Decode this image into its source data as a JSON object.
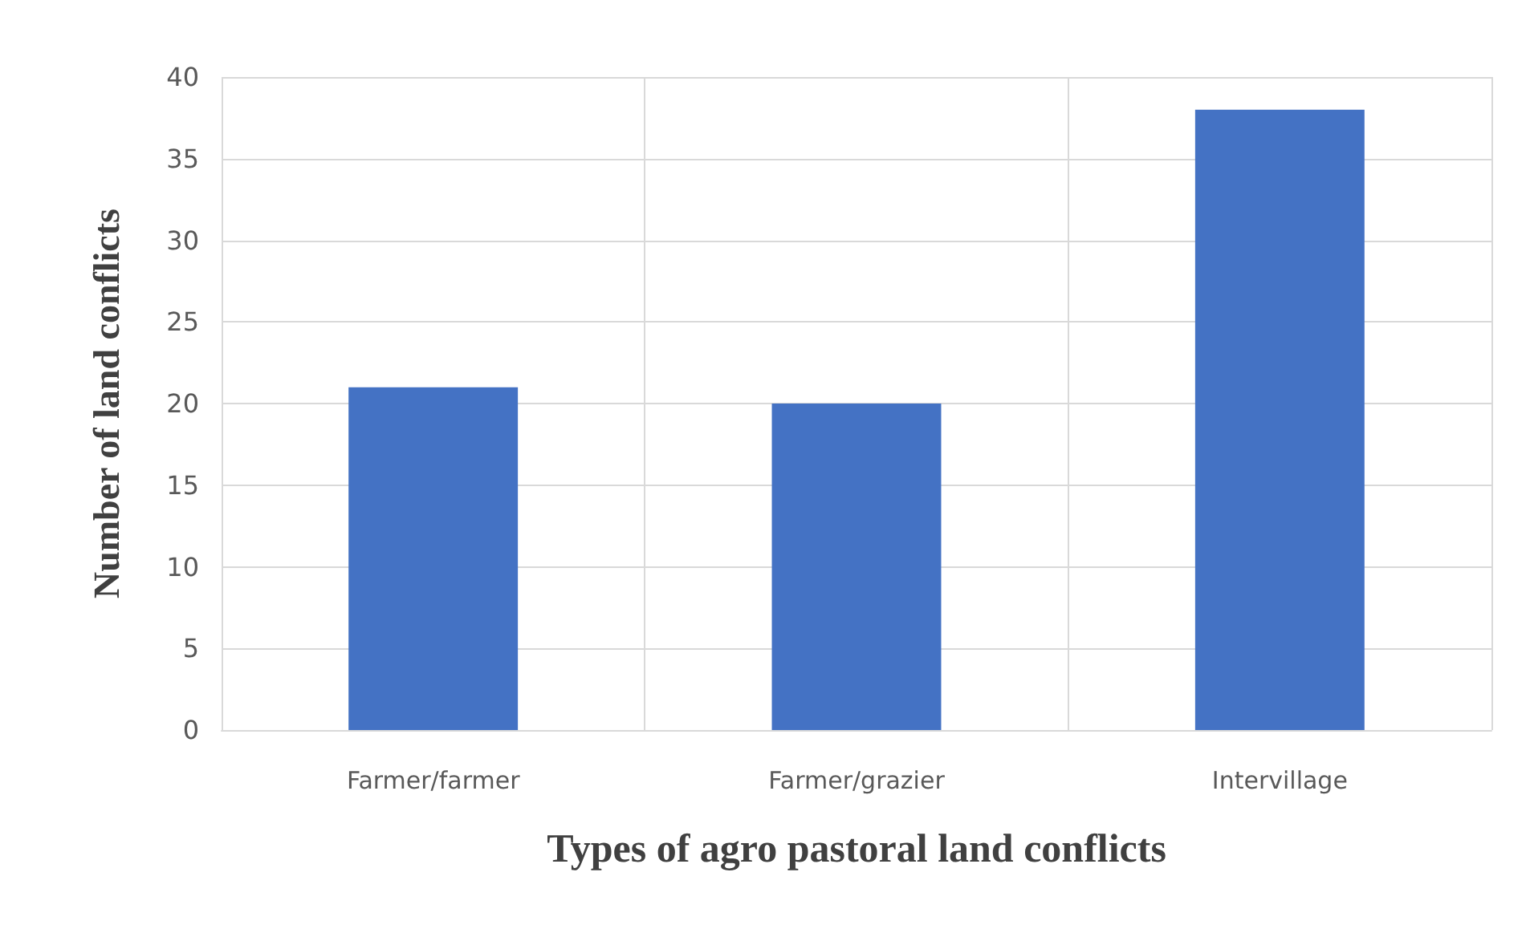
{
  "chart_data": {
    "type": "bar",
    "xlabel": "Types of agro pastoral land conflicts",
    "ylabel": "Number of land conflicts",
    "categories": [
      "Farmer/farmer",
      "Farmer/grazier",
      "Intervillage"
    ],
    "values": [
      21,
      20,
      38
    ],
    "color": "#4472c4",
    "ylim": [
      0,
      40
    ],
    "yticks": [
      0,
      5,
      10,
      15,
      20,
      25,
      30,
      35,
      40
    ],
    "grid": true
  }
}
